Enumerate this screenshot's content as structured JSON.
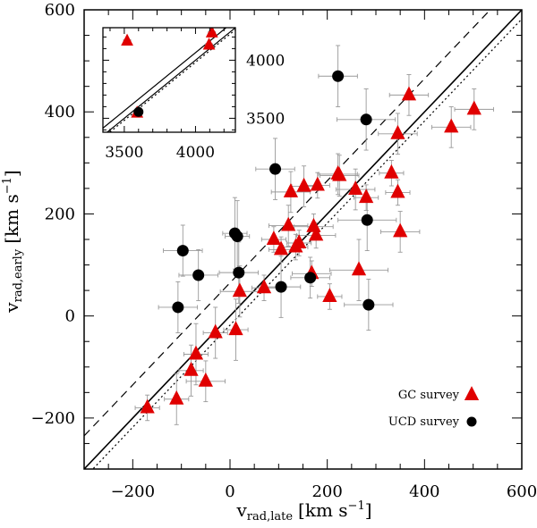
{
  "chart_data": {
    "type": "scatter",
    "xlabel_main": "v",
    "xlabel_sub": "rad,late",
    "xlabel_units": "[km s",
    "xlabel_exp": "−1",
    "xlabel_close": "]",
    "ylabel_main": "v",
    "ylabel_sub": "rad,early",
    "ylabel_units": "[km s",
    "ylabel_exp": "−1",
    "ylabel_close": "]",
    "xlim": [
      -300,
      600
    ],
    "ylim": [
      -300,
      600
    ],
    "x_ticks": [
      -200,
      0,
      200,
      400,
      600
    ],
    "x_tick_labels": [
      "−200",
      "0",
      "200",
      "400",
      "600"
    ],
    "y_ticks": [
      -200,
      0,
      200,
      400,
      600
    ],
    "y_tick_labels": [
      "−200",
      "0",
      "200",
      "400",
      "600"
    ],
    "legend": [
      {
        "label": "GC survey",
        "marker": "triangle",
        "color": "#e00000"
      },
      {
        "label": "UCD survey",
        "marker": "circle",
        "color": "#000000"
      }
    ],
    "lines": [
      {
        "name": "one-to-one",
        "style": "solid",
        "slope": 1,
        "intercept": 0
      },
      {
        "name": "offset",
        "style": "dashed",
        "slope": 1,
        "intercept": 65
      },
      {
        "name": "fit",
        "style": "dotted",
        "slope": 1,
        "intercept": -18
      }
    ],
    "series": [
      {
        "name": "GC survey",
        "marker": "triangle",
        "color": "#e00000",
        "points": [
          {
            "x": -170,
            "y": -180,
            "ex": 25,
            "ey": 25
          },
          {
            "x": -110,
            "y": -163,
            "ex": 25,
            "ey": 50
          },
          {
            "x": -70,
            "y": -75,
            "ex": 25,
            "ey": 60
          },
          {
            "x": -80,
            "y": -107,
            "ex": 25,
            "ey": 50
          },
          {
            "x": -50,
            "y": -128,
            "ex": 40,
            "ey": 40
          },
          {
            "x": -30,
            "y": -33,
            "ex": 25,
            "ey": 50
          },
          {
            "x": 12,
            "y": -27,
            "ex": 25,
            "ey": 60
          },
          {
            "x": 20,
            "y": 48,
            "ex": 40,
            "ey": 50
          },
          {
            "x": 70,
            "y": 55,
            "ex": 25,
            "ey": 25
          },
          {
            "x": 90,
            "y": 150,
            "ex": 25,
            "ey": 25
          },
          {
            "x": 105,
            "y": 130,
            "ex": 25,
            "ey": 25
          },
          {
            "x": 125,
            "y": 243,
            "ex": 40,
            "ey": 40
          },
          {
            "x": 120,
            "y": 177,
            "ex": 40,
            "ey": 40
          },
          {
            "x": 135,
            "y": 135,
            "ex": 25,
            "ey": 25
          },
          {
            "x": 142,
            "y": 143,
            "ex": 25,
            "ey": 25
          },
          {
            "x": 152,
            "y": 254,
            "ex": 25,
            "ey": 40
          },
          {
            "x": 180,
            "y": 256,
            "ex": 25,
            "ey": 25
          },
          {
            "x": 172,
            "y": 175,
            "ex": 40,
            "ey": 25
          },
          {
            "x": 177,
            "y": 158,
            "ex": 40,
            "ey": 25
          },
          {
            "x": 168,
            "y": 83,
            "ex": 40,
            "ey": 25
          },
          {
            "x": 205,
            "y": 38,
            "ex": 25,
            "ey": 25
          },
          {
            "x": 222,
            "y": 278,
            "ex": 40,
            "ey": 40
          },
          {
            "x": 225,
            "y": 275,
            "ex": 40,
            "ey": 40
          },
          {
            "x": 258,
            "y": 248,
            "ex": 40,
            "ey": 40
          },
          {
            "x": 265,
            "y": 90,
            "ex": 60,
            "ey": 60
          },
          {
            "x": 280,
            "y": 232,
            "ex": 25,
            "ey": 25
          },
          {
            "x": 332,
            "y": 280,
            "ex": 25,
            "ey": 25
          },
          {
            "x": 345,
            "y": 242,
            "ex": 25,
            "ey": 25
          },
          {
            "x": 345,
            "y": 357,
            "ex": 40,
            "ey": 40
          },
          {
            "x": 350,
            "y": 165,
            "ex": 40,
            "ey": 40
          },
          {
            "x": 368,
            "y": 433,
            "ex": 40,
            "ey": 40
          },
          {
            "x": 455,
            "y": 370,
            "ex": 40,
            "ey": 40
          },
          {
            "x": 502,
            "y": 405,
            "ex": 40,
            "ey": 40
          }
        ]
      },
      {
        "name": "UCD survey",
        "marker": "circle",
        "color": "#000000",
        "points": [
          {
            "x": -107,
            "y": 17,
            "ex": 40,
            "ey": 50
          },
          {
            "x": -97,
            "y": 128,
            "ex": 40,
            "ey": 50
          },
          {
            "x": -65,
            "y": 80,
            "ex": 40,
            "ey": 50
          },
          {
            "x": 10,
            "y": 162,
            "ex": 25,
            "ey": 70
          },
          {
            "x": 15,
            "y": 156,
            "ex": 25,
            "ey": 70
          },
          {
            "x": 18,
            "y": 85,
            "ex": 40,
            "ey": 60
          },
          {
            "x": 93,
            "y": 288,
            "ex": 40,
            "ey": 60
          },
          {
            "x": 105,
            "y": 57,
            "ex": 40,
            "ey": 60
          },
          {
            "x": 165,
            "y": 75,
            "ex": 40,
            "ey": 40
          },
          {
            "x": 222,
            "y": 470,
            "ex": 40,
            "ey": 60
          },
          {
            "x": 280,
            "y": 385,
            "ex": 60,
            "ey": 60
          },
          {
            "x": 282,
            "y": 188,
            "ex": 60,
            "ey": 60
          },
          {
            "x": 285,
            "y": 22,
            "ex": 50,
            "ey": 50
          }
        ]
      }
    ],
    "inset": {
      "xlim": [
        3350,
        4280
      ],
      "ylim": [
        3380,
        4280
      ],
      "x_ticks": [
        3500,
        4000
      ],
      "x_tick_labels": [
        "3500",
        "4000"
      ],
      "y_ticks": [
        3500,
        4000
      ],
      "y_tick_labels": [
        "3500",
        "4000"
      ],
      "lines": [
        {
          "name": "one-to-one",
          "style": "solid",
          "slope": 1,
          "intercept": 0
        },
        {
          "name": "offset",
          "style": "solid",
          "slope": 1,
          "intercept": 65
        },
        {
          "name": "fit",
          "style": "dotted",
          "slope": 1,
          "intercept": -18
        }
      ],
      "points": [
        {
          "marker": "triangle",
          "color": "#e00000",
          "x": 3520,
          "y": 4165,
          "ex": 25,
          "ey": 25
        },
        {
          "marker": "triangle",
          "color": "#e00000",
          "x": 4115,
          "y": 4235,
          "ex": 25,
          "ey": 25
        },
        {
          "marker": "triangle",
          "color": "#e00000",
          "x": 4095,
          "y": 4130,
          "ex": 25,
          "ey": 30
        },
        {
          "marker": "triangle",
          "color": "#e00000",
          "x": 3590,
          "y": 3545,
          "ex": 25,
          "ey": 25
        },
        {
          "marker": "circle",
          "color": "#000000",
          "x": 3600,
          "y": 3555,
          "ex": 30,
          "ey": 30
        }
      ]
    }
  }
}
